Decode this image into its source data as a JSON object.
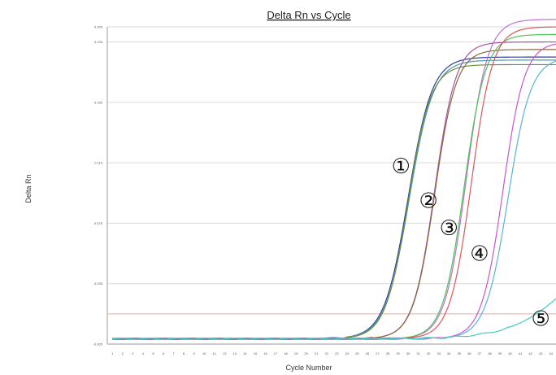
{
  "chart_data": {
    "type": "line",
    "title": "Delta Rn vs Cycle",
    "xlabel": "Cycle Number",
    "ylabel": "Delta Rn",
    "xlim": [
      0.5,
      44.5
    ],
    "ylim": [
      -0.005,
      0.205
    ],
    "x_ticks": [
      "1",
      "2",
      "3",
      "4",
      "5",
      "6",
      "7",
      "8",
      "9",
      "10",
      "11",
      "12",
      "13",
      "14",
      "15",
      "16",
      "17",
      "18",
      "19",
      "20",
      "21",
      "22",
      "23",
      "24",
      "25",
      "26",
      "27",
      "28",
      "29",
      "30",
      "31",
      "32",
      "33",
      "34",
      "35",
      "36",
      "37",
      "38",
      "39",
      "40",
      "41",
      "42",
      "43",
      "44"
    ],
    "y_ticks": [
      "-0.005",
      "0.035",
      "0.075",
      "0.115",
      "0.155",
      "0.195",
      "0.205"
    ],
    "threshold": {
      "y": 0.015,
      "color": "#f2b8b8"
    },
    "grid": "horizontal",
    "markers": [
      {
        "label": "①",
        "x": 29.3,
        "y": 0.113
      },
      {
        "label": "②",
        "x": 32.0,
        "y": 0.09
      },
      {
        "label": "③",
        "x": 34.0,
        "y": 0.072
      },
      {
        "label": "④",
        "x": 37.0,
        "y": 0.055
      },
      {
        "label": "⑤",
        "x": 43.0,
        "y": 0.012
      }
    ],
    "series": [
      {
        "color": "#2f3f9f",
        "plateau": 0.185,
        "midpoint": 30.0,
        "slope": 0.85
      },
      {
        "color": "#4a9aa8",
        "plateau": 0.183,
        "midpoint": 30.1,
        "slope": 0.85
      },
      {
        "color": "#6e8f3a",
        "plateau": 0.18,
        "midpoint": 30.0,
        "slope": 0.9
      },
      {
        "color": "#a455a8",
        "plateau": 0.195,
        "midpoint": 32.6,
        "slope": 0.95
      },
      {
        "color": "#8a6a3a",
        "plateau": 0.19,
        "midpoint": 32.6,
        "slope": 0.95
      },
      {
        "color": "#c06fd0",
        "plateau": 0.21,
        "midpoint": 35.7,
        "slope": 0.95
      },
      {
        "color": "#4ec45a",
        "plateau": 0.2,
        "midpoint": 35.5,
        "slope": 0.95
      },
      {
        "color": "#e05555",
        "plateau": 0.205,
        "midpoint": 36.2,
        "slope": 0.95
      },
      {
        "color": "#cc55cc",
        "plateau": 0.195,
        "midpoint": 39.3,
        "slope": 0.95
      },
      {
        "color": "#55b5d8",
        "plateau": 0.185,
        "midpoint": 39.8,
        "slope": 0.9
      },
      {
        "color": "#45c9c1",
        "plateau": 0.07,
        "midpoint": 46.0,
        "slope": 0.35
      }
    ]
  }
}
